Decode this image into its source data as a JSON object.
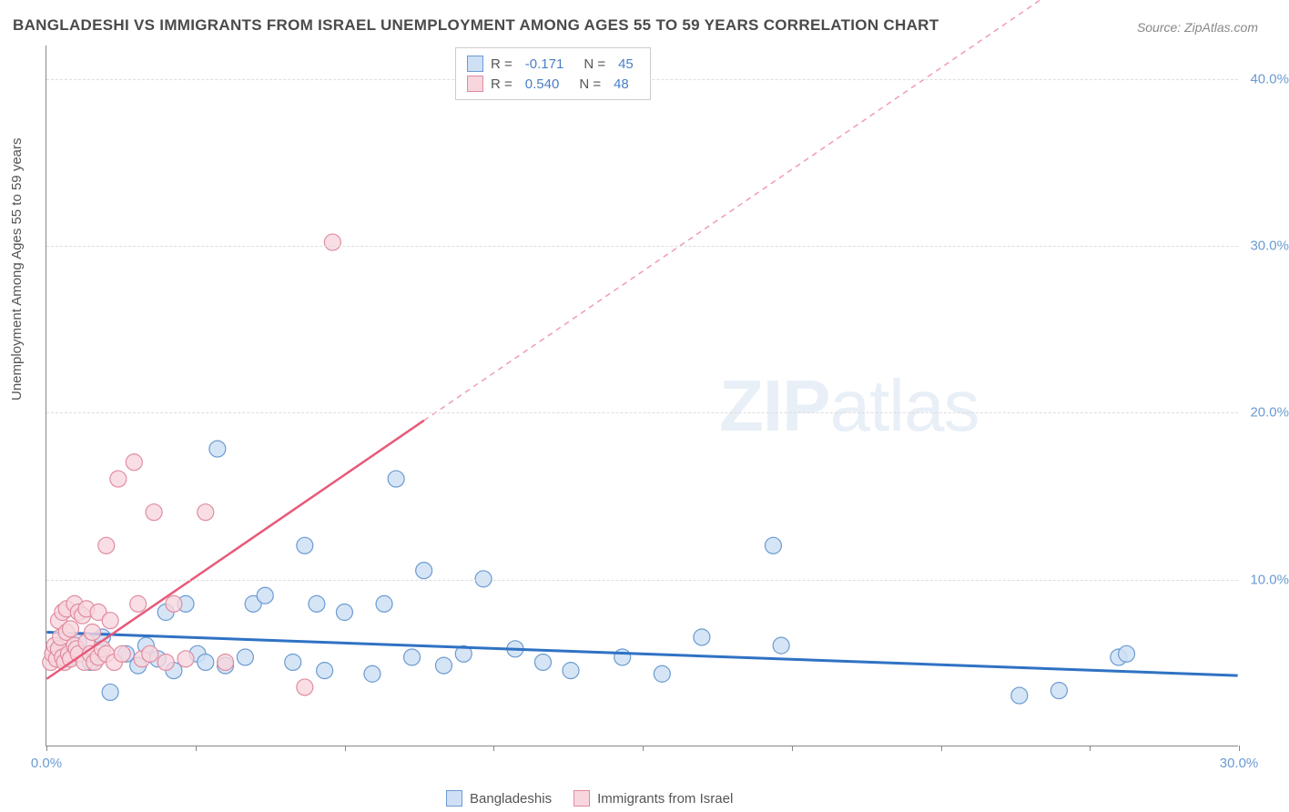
{
  "chart": {
    "type": "scatter",
    "title": "BANGLADESHI VS IMMIGRANTS FROM ISRAEL UNEMPLOYMENT AMONG AGES 55 TO 59 YEARS CORRELATION CHART",
    "source": "Source: ZipAtlas.com",
    "y_axis_label": "Unemployment Among Ages 55 to 59 years",
    "watermark": {
      "prefix": "ZIP",
      "suffix": "atlas"
    },
    "background_color": "#ffffff",
    "grid_color": "#dddddd",
    "axis_color": "#888888",
    "xlim": [
      0,
      30
    ],
    "ylim": [
      0,
      42
    ],
    "x_ticks": [
      0,
      3.75,
      7.5,
      11.25,
      15,
      18.75,
      22.5,
      26.25,
      30
    ],
    "x_tick_labels": {
      "0": "0.0%",
      "30": "30.0%"
    },
    "y_ticks": [
      10,
      20,
      30,
      40
    ],
    "y_tick_labels": [
      "10.0%",
      "20.0%",
      "30.0%",
      "40.0%"
    ],
    "legend_top": [
      {
        "swatch_fill": "#cfe0f5",
        "swatch_border": "#6b9bd1",
        "r_label": "R =",
        "r_value": "-0.171",
        "n_label": "N =",
        "n_value": "45"
      },
      {
        "swatch_fill": "#f7d6de",
        "swatch_border": "#e08ca0",
        "r_label": "R =",
        "r_value": "0.540",
        "n_label": "N =",
        "n_value": "48"
      }
    ],
    "legend_bottom": [
      {
        "swatch_fill": "#cfe0f5",
        "swatch_border": "#6b9bd1",
        "label": "Bangladeshis"
      },
      {
        "swatch_fill": "#f7d6de",
        "swatch_border": "#e08ca0",
        "label": "Immigrants from Israel"
      }
    ],
    "series": [
      {
        "name": "Bangladeshis",
        "marker_fill": "#cfe0f5",
        "marker_stroke": "#6b9bd1",
        "marker_radius": 9,
        "marker_opacity": 0.85,
        "trend_color": "#2f72c4",
        "trend_width": 3,
        "trend_dash": "none",
        "trend": {
          "x1": 0,
          "y1": 6.8,
          "x2": 30,
          "y2": 4.2
        },
        "points": [
          [
            0.3,
            5.8
          ],
          [
            0.6,
            5.3
          ],
          [
            0.8,
            6.2
          ],
          [
            1.1,
            5.0
          ],
          [
            1.4,
            6.5
          ],
          [
            1.6,
            3.2
          ],
          [
            2.0,
            5.5
          ],
          [
            2.3,
            4.8
          ],
          [
            2.5,
            6.0
          ],
          [
            2.8,
            5.2
          ],
          [
            3.0,
            8.0
          ],
          [
            3.2,
            4.5
          ],
          [
            3.5,
            8.5
          ],
          [
            3.8,
            5.5
          ],
          [
            4.0,
            5.0
          ],
          [
            4.3,
            17.8
          ],
          [
            4.5,
            4.8
          ],
          [
            5.0,
            5.3
          ],
          [
            5.2,
            8.5
          ],
          [
            5.5,
            9.0
          ],
          [
            6.2,
            5.0
          ],
          [
            6.5,
            12.0
          ],
          [
            6.8,
            8.5
          ],
          [
            7.0,
            4.5
          ],
          [
            7.5,
            8.0
          ],
          [
            8.2,
            4.3
          ],
          [
            8.5,
            8.5
          ],
          [
            8.8,
            16.0
          ],
          [
            9.2,
            5.3
          ],
          [
            9.5,
            10.5
          ],
          [
            10.0,
            4.8
          ],
          [
            10.5,
            5.5
          ],
          [
            11.0,
            10.0
          ],
          [
            11.8,
            5.8
          ],
          [
            12.5,
            5.0
          ],
          [
            13.2,
            4.5
          ],
          [
            14.5,
            5.3
          ],
          [
            15.5,
            4.3
          ],
          [
            16.5,
            6.5
          ],
          [
            18.3,
            12.0
          ],
          [
            18.5,
            6.0
          ],
          [
            24.5,
            3.0
          ],
          [
            25.5,
            3.3
          ],
          [
            27.0,
            5.3
          ],
          [
            27.2,
            5.5
          ]
        ]
      },
      {
        "name": "Immigrants from Israel",
        "marker_fill": "#f7d6de",
        "marker_stroke": "#e08ca0",
        "marker_radius": 9,
        "marker_opacity": 0.78,
        "trend_color": "#e85a7a",
        "trend_width": 2.5,
        "trend_dash": "none",
        "trend": {
          "x1": 0,
          "y1": 4.0,
          "x2": 9.5,
          "y2": 19.5
        },
        "trend_ext_dash": "6,5",
        "trend_ext": {
          "x1": 9.5,
          "y1": 19.5,
          "x2": 25.5,
          "y2": 45.5
        },
        "points": [
          [
            0.1,
            5.0
          ],
          [
            0.15,
            5.5
          ],
          [
            0.2,
            6.0
          ],
          [
            0.25,
            5.2
          ],
          [
            0.3,
            7.5
          ],
          [
            0.3,
            5.8
          ],
          [
            0.35,
            6.5
          ],
          [
            0.4,
            8.0
          ],
          [
            0.4,
            5.3
          ],
          [
            0.45,
            5.0
          ],
          [
            0.5,
            8.2
          ],
          [
            0.5,
            6.8
          ],
          [
            0.55,
            5.5
          ],
          [
            0.6,
            7.0
          ],
          [
            0.6,
            5.2
          ],
          [
            0.7,
            8.5
          ],
          [
            0.7,
            6.0
          ],
          [
            0.75,
            5.8
          ],
          [
            0.8,
            8.0
          ],
          [
            0.8,
            5.5
          ],
          [
            0.9,
            7.8
          ],
          [
            0.95,
            5.0
          ],
          [
            1.0,
            8.2
          ],
          [
            1.0,
            6.2
          ],
          [
            1.1,
            5.5
          ],
          [
            1.15,
            6.8
          ],
          [
            1.2,
            5.0
          ],
          [
            1.3,
            8.0
          ],
          [
            1.3,
            5.3
          ],
          [
            1.4,
            5.8
          ],
          [
            1.5,
            12.0
          ],
          [
            1.5,
            5.5
          ],
          [
            1.6,
            7.5
          ],
          [
            1.7,
            5.0
          ],
          [
            1.8,
            16.0
          ],
          [
            1.9,
            5.5
          ],
          [
            2.2,
            17.0
          ],
          [
            2.3,
            8.5
          ],
          [
            2.4,
            5.2
          ],
          [
            2.6,
            5.5
          ],
          [
            2.7,
            14.0
          ],
          [
            3.0,
            5.0
          ],
          [
            3.2,
            8.5
          ],
          [
            3.5,
            5.2
          ],
          [
            4.0,
            14.0
          ],
          [
            4.5,
            5.0
          ],
          [
            6.5,
            3.5
          ],
          [
            7.2,
            30.2
          ]
        ]
      }
    ]
  }
}
